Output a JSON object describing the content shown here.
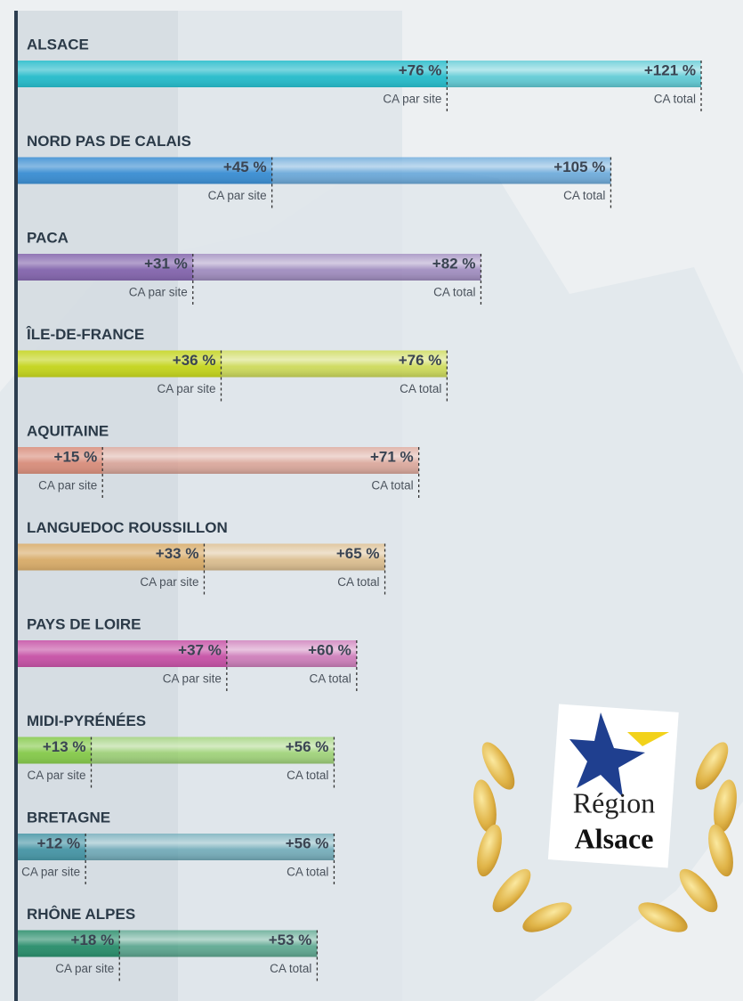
{
  "chart_data": {
    "type": "bar",
    "categories": [
      "ALSACE",
      "NORD PAS DE CALAIS",
      "PACA",
      "ÎLE-DE-FRANCE",
      "AQUITAINE",
      "LANGUEDOC ROUSSILLON",
      "PAYS DE LOIRE",
      "MIDI-PYRÉNÉES",
      "BRETAGNE",
      "RHÔNE ALPES"
    ],
    "colors": [
      "#27bccb",
      "#3b8ed2",
      "#8466ad",
      "#c4d41e",
      "#d88e7c",
      "#d8ac6a",
      "#c652a6",
      "#86ca4c",
      "#4896a6",
      "#2a8e6c"
    ],
    "series": [
      {
        "name": "CA par site",
        "values": [
          76,
          45,
          31,
          36,
          15,
          33,
          37,
          13,
          12,
          18
        ],
        "value_labels": [
          "+76 %",
          "+45 %",
          "+31 %",
          "+36 %",
          "+15 %",
          "+33 %",
          "+37 %",
          "+13 %",
          "+12 %",
          "+18 %"
        ]
      },
      {
        "name": "CA total",
        "values": [
          121,
          105,
          82,
          76,
          71,
          65,
          60,
          56,
          56,
          53
        ],
        "value_labels": [
          "+121 %",
          "+105 %",
          "+82 %",
          "+76 %",
          "+71 %",
          "+65 %",
          "+60 %",
          "+56 %",
          "+56 %",
          "+53 %"
        ]
      }
    ],
    "badge": {
      "line1": "Région",
      "line2": "Alsace"
    }
  }
}
